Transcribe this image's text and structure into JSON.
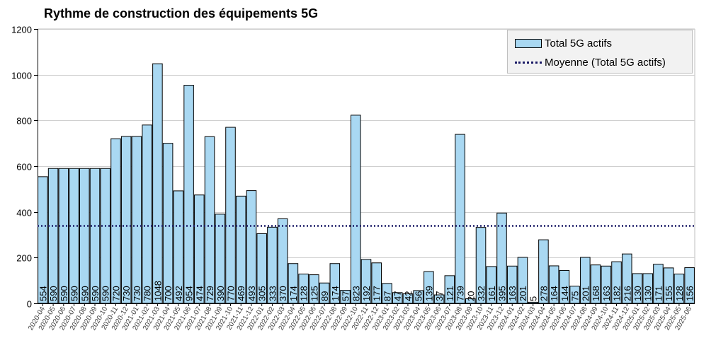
{
  "chart_data": {
    "type": "bar",
    "title": "Rythme de construction des équipements 5G",
    "xlabel": "",
    "ylabel": "",
    "ylim": [
      0,
      1200
    ],
    "yticks": [
      0,
      200,
      400,
      600,
      800,
      1000,
      1200
    ],
    "grid": true,
    "legend_position": "top-right",
    "colors": {
      "bar": "#a9d8f2",
      "bar_edge": "#000000",
      "mean_line": "#1a1a66"
    },
    "categories": [
      "2020-04",
      "2020-05",
      "2020-06",
      "2020-07",
      "2020-08",
      "2020-09",
      "2020-10",
      "2020-11",
      "2020-12",
      "2021-01",
      "2021-02",
      "2021-03",
      "2021-04",
      "2021-05",
      "2021-06",
      "2021-07",
      "2021-08",
      "2021-09",
      "2021-10",
      "2021-11",
      "2021-12",
      "2022-01",
      "2022-02",
      "2022-03",
      "2022-04",
      "2022-05",
      "2022-06",
      "2022-07",
      "2022-08",
      "2022-09",
      "2022-10",
      "2022-11",
      "2022-12",
      "2023-01",
      "2023-02",
      "2023-03",
      "2023-04",
      "2023-05",
      "2023-06",
      "2023-07",
      "2023-08",
      "2023-09",
      "2023-10",
      "2023-11",
      "2023-12",
      "2024-01",
      "2024-02",
      "2024-03",
      "2024-04",
      "2024-05",
      "2024-06",
      "2024-07",
      "2024-08",
      "2024-09",
      "2024-10",
      "2024-11",
      "2024-12",
      "2025-01",
      "2025-02",
      "2025-03",
      "2025-04",
      "2025-05",
      "2025-06"
    ],
    "series": [
      {
        "name": "Total 5G actifs",
        "values": [
          554,
          590,
          590,
          590,
          590,
          590,
          590,
          720,
          730,
          730,
          780,
          1048,
          700,
          492,
          954,
          474,
          729,
          390,
          770,
          469,
          493,
          305,
          333,
          370,
          174,
          128,
          125,
          89,
          174,
          57,
          823,
          192,
          177,
          87,
          47,
          42,
          56,
          139,
          37,
          121,
          739,
          20,
          332,
          161,
          395,
          163,
          201,
          5,
          278,
          164,
          144,
          75,
          201,
          168,
          163,
          182,
          216,
          130,
          130,
          171,
          155,
          128,
          156
        ]
      }
    ],
    "mean_line": {
      "name": "Moyenne (Total 5G actifs)",
      "value": 340
    }
  }
}
